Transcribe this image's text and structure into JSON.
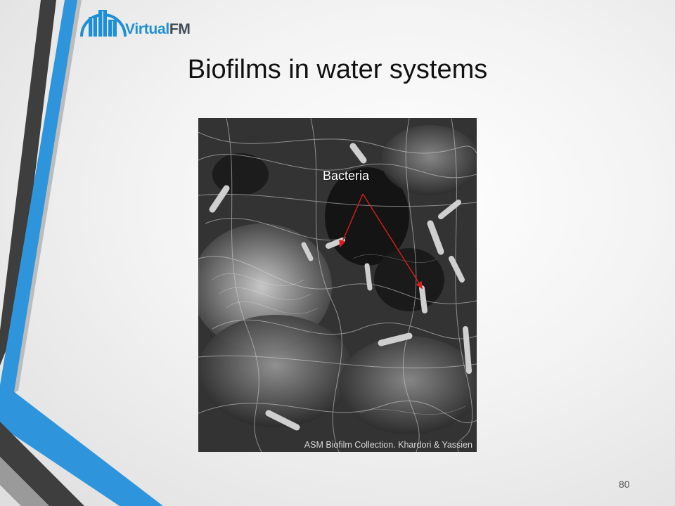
{
  "slide": {
    "logo": {
      "part1": "Virtual",
      "part2": "FM"
    },
    "title": "Biofilms in water systems",
    "image": {
      "annotation": "Bacteria",
      "credit": "ASM Biofilm Collection. Khardori & Yassien"
    },
    "page_number": "80"
  },
  "colors": {
    "accent_blue": "#1e8fd6",
    "dark_gray": "#3f4a55",
    "arrow_red": "#d81e1e"
  }
}
